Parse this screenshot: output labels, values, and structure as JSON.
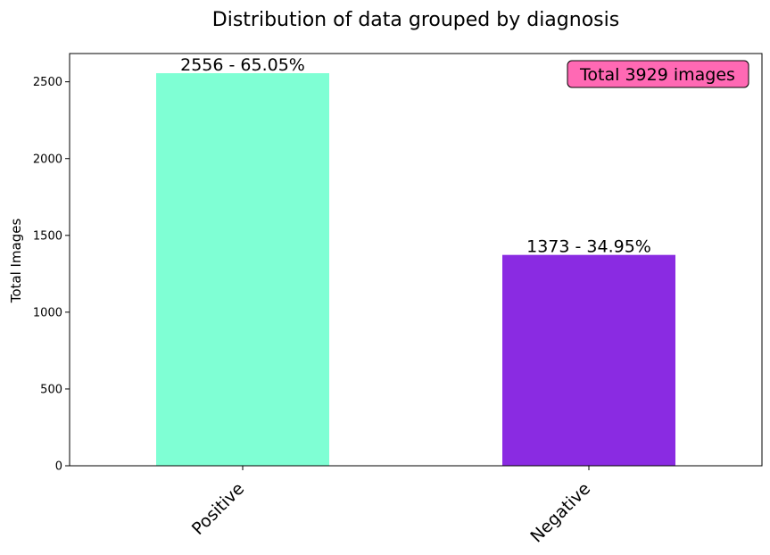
{
  "chart_data": {
    "type": "bar",
    "title": "Distribution of data grouped by diagnosis",
    "xlabel": "",
    "ylabel": "Total Images",
    "categories": [
      "Positive",
      "Negative"
    ],
    "values": [
      2556,
      1373
    ],
    "data_labels": [
      "2556 - 65.05%",
      "1373 - 34.95%"
    ],
    "colors": [
      "#7fffd4",
      "#8a2be2"
    ],
    "ylim": [
      0,
      2684
    ],
    "yticks": [
      0,
      500,
      1000,
      1500,
      2000,
      2500
    ],
    "grid": false,
    "legend": "none",
    "annotation": {
      "text": "Total 3929 images",
      "placement": "top-right",
      "background": "#ff69b4"
    }
  }
}
